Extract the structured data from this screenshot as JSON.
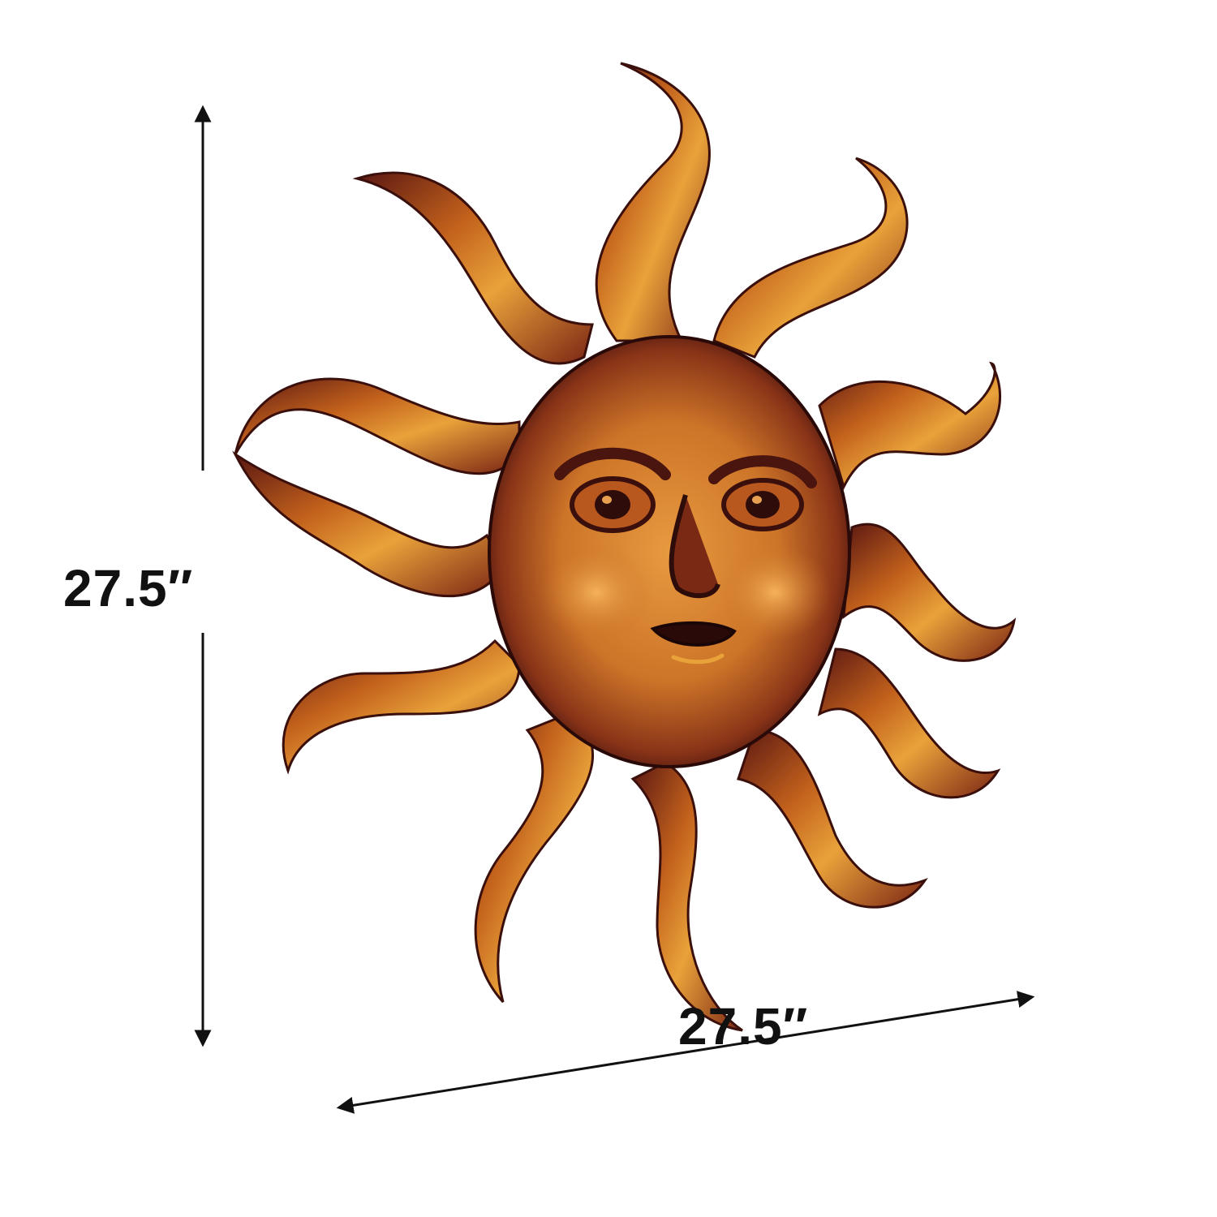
{
  "dimensions": {
    "height_label": "27.5″",
    "width_label": "27.5″"
  },
  "colors": {
    "ray_light": "#e9a23a",
    "ray_mid": "#c2611c",
    "ray_dark": "#5a1712",
    "face_light": "#e6923a",
    "face_dark": "#6a2416",
    "arrow": "#111111"
  }
}
